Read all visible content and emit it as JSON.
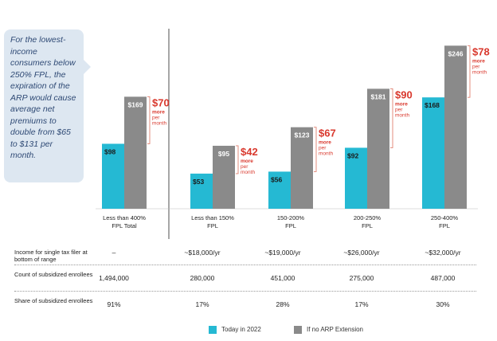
{
  "callout": {
    "text": "For the lowest-income consumers below 250% FPL, the expiration of the ARP would cause average net premiums to double from $65 to $131 per month."
  },
  "colors": {
    "today": "#25b9d3",
    "no_arp": "#8a8a8a",
    "callout_red": "#d9382d",
    "annotation_line": "#e08070"
  },
  "chart_data": {
    "type": "bar",
    "categories": [
      "Less than 400%\nFPL Total",
      "Less than 150%\nFPL",
      "150-200%\nFPL",
      "200-250%\nFPL",
      "250-400%\nFPL"
    ],
    "series": [
      {
        "name": "Today in 2022",
        "values": [
          98,
          53,
          56,
          92,
          168
        ],
        "labels": [
          "$98",
          "$53",
          "$56",
          "$92",
          "$168"
        ]
      },
      {
        "name": "If no ARP Extension",
        "values": [
          169,
          95,
          123,
          181,
          246
        ],
        "labels": [
          "$169",
          "$95",
          "$123",
          "$181",
          "$246"
        ]
      }
    ],
    "differences": [
      {
        "amount": "$70",
        "text": "more per month"
      },
      {
        "amount": "$42",
        "text": "more per month"
      },
      {
        "amount": "$67",
        "text": "more per month"
      },
      {
        "amount": "$90",
        "text": "more per month"
      },
      {
        "amount": "$78",
        "text": "more per month"
      }
    ],
    "ylim": [
      0,
      260
    ]
  },
  "table": {
    "rows": [
      {
        "label": "Income for single tax filer at bottom of range",
        "values": [
          "–",
          "~$18,000/yr",
          "~$19,000/yr",
          "~$26,000/yr",
          "~$32,000/yr"
        ]
      },
      {
        "label": "Count of subsidized enrollees",
        "values": [
          "1,494,000",
          "280,000",
          "451,000",
          "275,000",
          "487,000"
        ]
      },
      {
        "label": "Share of subsidized enrollees",
        "values": [
          "91%",
          "17%",
          "28%",
          "17%",
          "30%"
        ]
      }
    ]
  },
  "legend": {
    "today": "Today in 2022",
    "no_arp": "If no ARP Extension"
  }
}
